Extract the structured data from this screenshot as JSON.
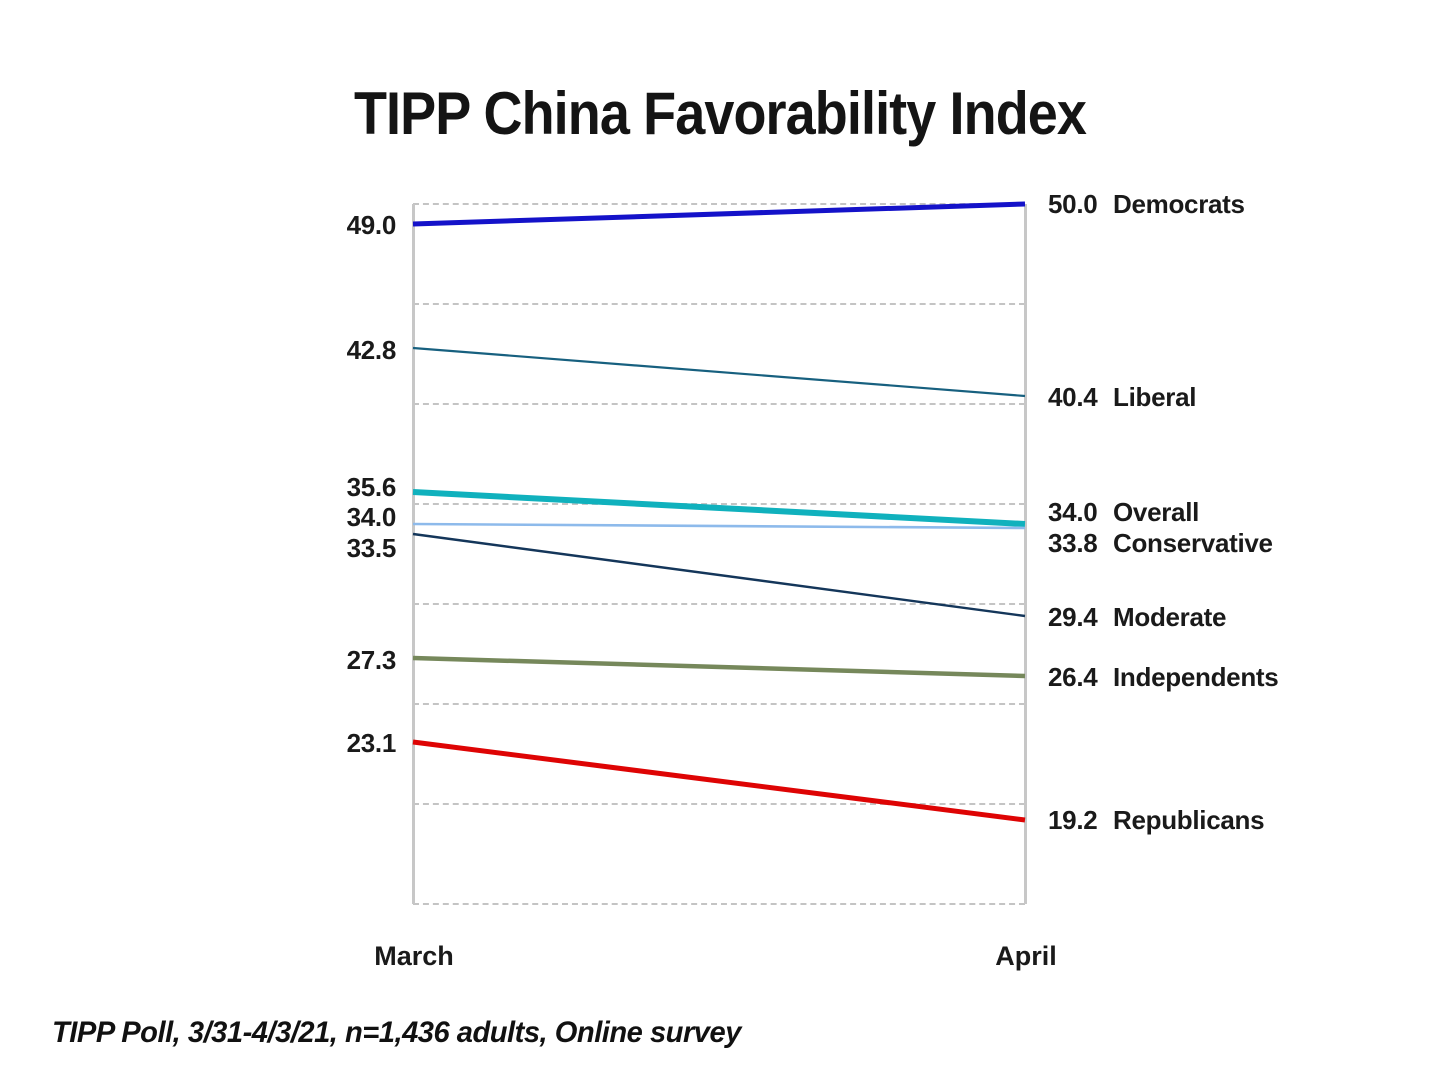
{
  "title": "TIPP China Favorability Index",
  "footnote": "TIPP Poll, 3/31-4/3/21, n=1,436 adults, Online survey",
  "colors": {
    "gridline": "#c4c4c4",
    "plot_border": "#c7c7c7",
    "text": "#1a1a1a"
  },
  "chart_data": {
    "type": "line",
    "subtype": "slope",
    "title": "TIPP China Favorability Index",
    "categories": [
      "March",
      "April"
    ],
    "xlabel": "",
    "ylabel": "",
    "ylim": [
      15,
      50
    ],
    "grid_interval": 5,
    "grid_style": "dashed",
    "legend_position": "inline-right-labels",
    "value_labels": "both-ends",
    "series": [
      {
        "name": "Democrats",
        "values": [
          49.0,
          50.0
        ],
        "color": "#1412c9",
        "thickness": 5,
        "left_dy": 1,
        "right_dy": 0
      },
      {
        "name": "Liberal",
        "values": [
          42.8,
          40.4
        ],
        "color": "#17607f",
        "thickness": 2.2,
        "left_dy": 2,
        "right_dy": 1
      },
      {
        "name": "Overall",
        "values": [
          35.6,
          34.0
        ],
        "color": "#10b1bd",
        "thickness": 6,
        "left_dy": -5,
        "right_dy": -12
      },
      {
        "name": "Conservative",
        "values": [
          34.0,
          33.8
        ],
        "color": "#8dbaeb",
        "thickness": 2.6,
        "left_dy": -7,
        "right_dy": 15
      },
      {
        "name": "Moderate",
        "values": [
          33.5,
          29.4
        ],
        "color": "#14365a",
        "thickness": 2.4,
        "left_dy": 14,
        "right_dy": 1
      },
      {
        "name": "Independents",
        "values": [
          27.3,
          26.4
        ],
        "color": "#76885b",
        "thickness": 4.5,
        "left_dy": 2,
        "right_dy": 1
      },
      {
        "name": "Republicans",
        "values": [
          23.1,
          19.2
        ],
        "color": "#de0404",
        "thickness": 5,
        "left_dy": 1,
        "right_dy": 0
      }
    ]
  }
}
